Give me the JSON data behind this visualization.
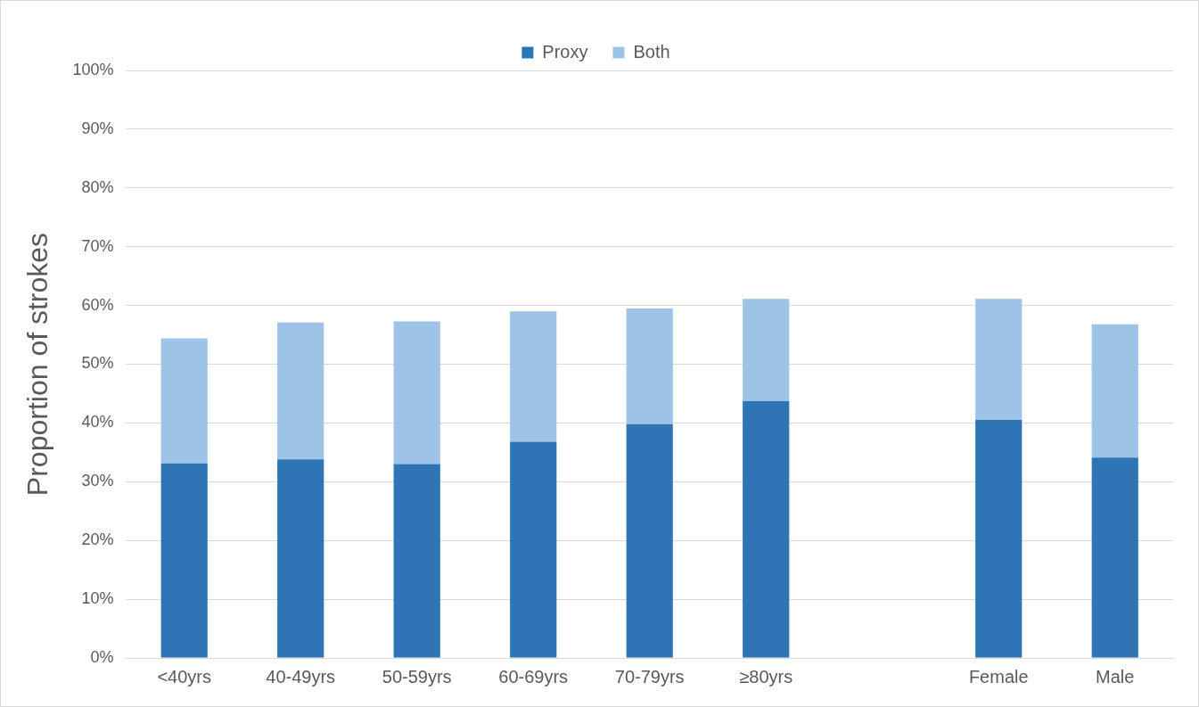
{
  "chart_data": {
    "type": "bar",
    "stacked": true,
    "ylabel": "Proportion of strokes",
    "categories": [
      "<40yrs",
      "40-49yrs",
      "50-59yrs",
      "60-69yrs",
      "70-79yrs",
      "≥80yrs",
      null,
      "Female",
      "Male"
    ],
    "series": [
      {
        "name": "Proxy",
        "color": "#2e75b6",
        "values": [
          33.1,
          33.8,
          33.0,
          36.8,
          39.8,
          43.7,
          null,
          40.5,
          34.1
        ]
      },
      {
        "name": "Both",
        "color": "#9dc3e6",
        "values": [
          21.3,
          23.3,
          24.3,
          22.2,
          19.7,
          17.4,
          null,
          20.6,
          22.7
        ]
      }
    ],
    "ylim": [
      0,
      100
    ],
    "yticks": [
      {
        "value": 0,
        "label": "0%"
      },
      {
        "value": 10,
        "label": "10%"
      },
      {
        "value": 20,
        "label": "20%"
      },
      {
        "value": 30,
        "label": "30%"
      },
      {
        "value": 40,
        "label": "40%"
      },
      {
        "value": 50,
        "label": "50%"
      },
      {
        "value": 60,
        "label": "60%"
      },
      {
        "value": 70,
        "label": "70%"
      },
      {
        "value": 80,
        "label": "80%"
      },
      {
        "value": 90,
        "label": "90%"
      },
      {
        "value": 100,
        "label": "100%"
      }
    ],
    "grid": "y",
    "legend": "top"
  }
}
